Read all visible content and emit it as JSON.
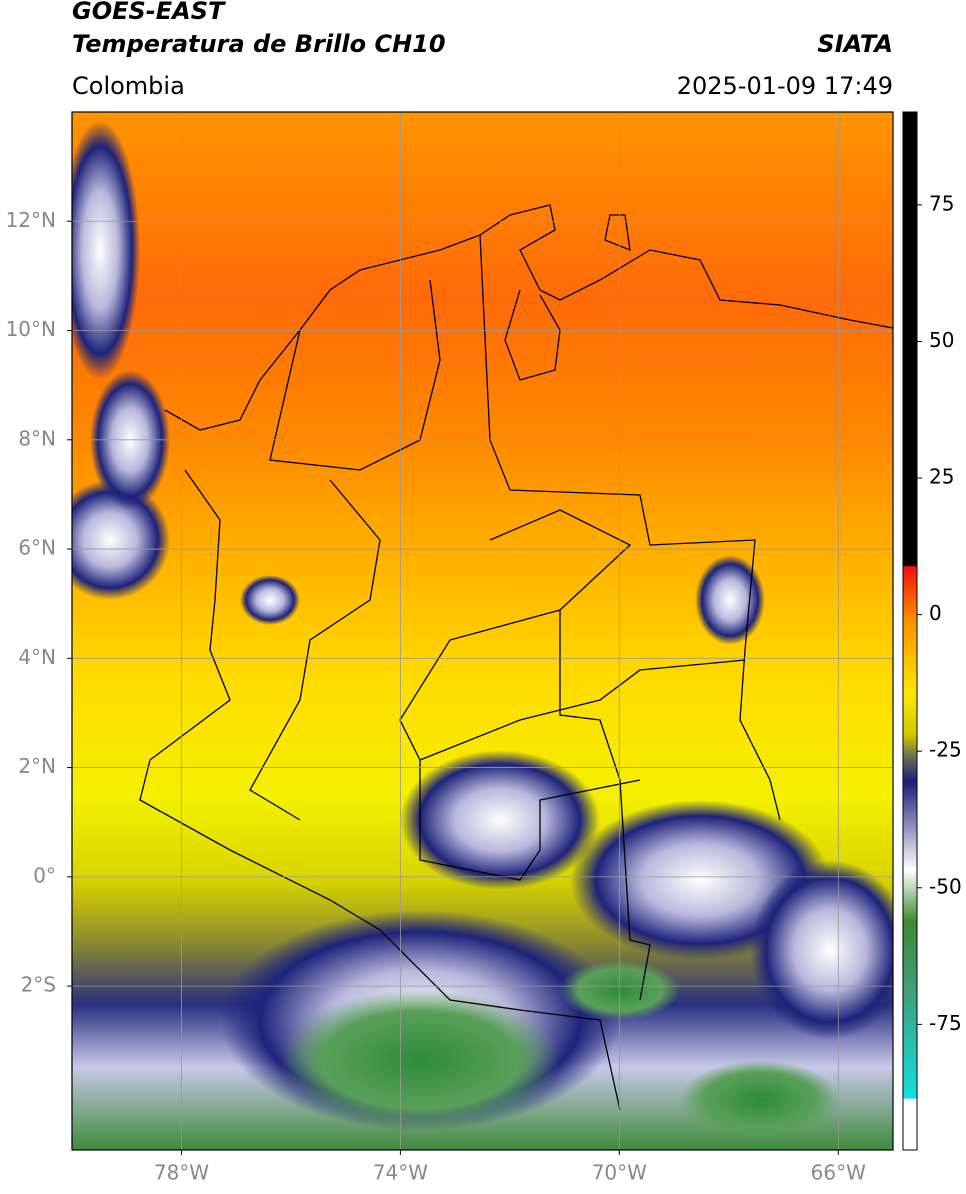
{
  "header": {
    "title": "GOES-EAST",
    "subtitle": "Temperatura de Brillo CH10",
    "region": "Colombia",
    "source": "SIATA",
    "datetime": "2025-01-09 17:49"
  },
  "map": {
    "lon_range": [
      -80,
      -65
    ],
    "lat_range": [
      -5,
      14
    ],
    "grid": true,
    "lon_ticks": [
      {
        "value": -78,
        "label": "78°W"
      },
      {
        "value": -74,
        "label": "74°W"
      },
      {
        "value": -70,
        "label": "70°W"
      },
      {
        "value": -66,
        "label": "66°W"
      }
    ],
    "lat_ticks": [
      {
        "value": 12,
        "label": "12°N"
      },
      {
        "value": 10,
        "label": "10°N"
      },
      {
        "value": 8,
        "label": "8°N"
      },
      {
        "value": 6,
        "label": "6°N"
      },
      {
        "value": 4,
        "label": "4°N"
      },
      {
        "value": 2,
        "label": "2°N"
      },
      {
        "value": 0,
        "label": "0°"
      },
      {
        "value": -2,
        "label": "2°S"
      }
    ]
  },
  "colorbar": {
    "range": [
      -98,
      92
    ],
    "ticks": [
      75,
      50,
      25,
      0,
      -25,
      -50,
      -75
    ]
  }
}
